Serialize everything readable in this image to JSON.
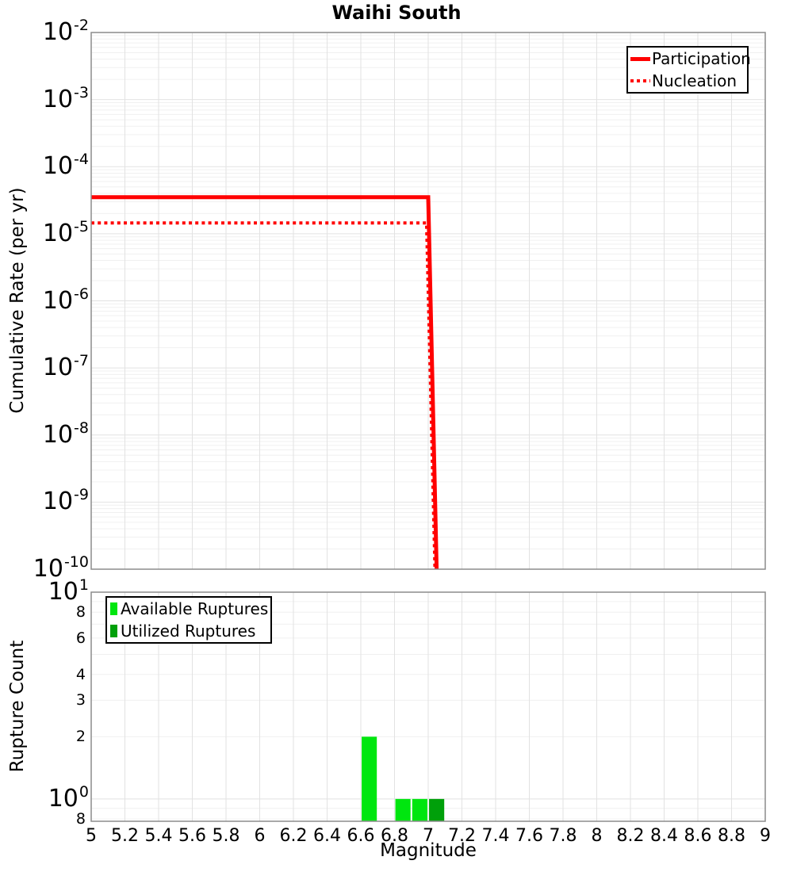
{
  "colors": {
    "line_red": "#FF0000",
    "available_green": "#00E60F",
    "utilized_green": "#00A00A",
    "grid_major": "#E2E2E2",
    "grid_minor": "#F0F0F0",
    "frame": "#8C8C8C",
    "background": "#FFFFFF"
  },
  "chart_data": [
    {
      "type": "line",
      "title": "Waihi South",
      "xlabel": "Magnitude",
      "ylabel": "Cumulative Rate (per yr)",
      "xscale": "linear",
      "yscale": "log",
      "xlim": [
        5,
        9
      ],
      "ylim": [
        1e-10,
        0.01
      ],
      "grid": true,
      "legend_position": "top-right",
      "x_tick_labels": [
        "5",
        "5.2",
        "5.4",
        "5.6",
        "5.8",
        "6",
        "6.2",
        "6.4",
        "6.6",
        "6.8",
        "7",
        "7.2",
        "7.4",
        "7.6",
        "7.8",
        "8",
        "8.2",
        "8.4",
        "8.6",
        "8.8",
        "9"
      ],
      "y_tick_exponents": [
        -2,
        -3,
        -4,
        -5,
        -6,
        -7,
        -8,
        -9,
        -10
      ],
      "series": [
        {
          "name": "Participation",
          "color": "#FF0000",
          "line_style": "solid",
          "line_width": 5,
          "points": [
            [
              5.0,
              3.5e-05
            ],
            [
              7.0,
              3.5e-05
            ],
            [
              7.05,
              1e-10
            ]
          ]
        },
        {
          "name": "Nucleation",
          "color": "#FF0000",
          "line_style": "dotted",
          "line_width": 4,
          "points": [
            [
              5.0,
              1.45e-05
            ],
            [
              6.99,
              1.45e-05
            ],
            [
              7.04,
              1e-10
            ]
          ]
        }
      ]
    },
    {
      "type": "bar",
      "xlabel": "Magnitude",
      "ylabel": "Rupture Count",
      "yscale": "log",
      "xlim": [
        5,
        9
      ],
      "ylim": [
        0.78,
        10
      ],
      "grid": true,
      "legend_position": "top-left",
      "bar_bin_width": 0.1,
      "bar_draw_width": 0.09,
      "y_major_ticks": [
        {
          "exponent": 1
        },
        {
          "exponent": 0
        }
      ],
      "y_minor_ticks": [
        {
          "value": 8,
          "label": "8"
        },
        {
          "value": 6,
          "label": "6"
        },
        {
          "value": 4,
          "label": "4"
        },
        {
          "value": 3,
          "label": "3"
        },
        {
          "value": 2,
          "label": "2"
        },
        {
          "value": 0.8,
          "label": "8"
        }
      ],
      "series": [
        {
          "name": "Available Ruptures",
          "color": "#00E60F",
          "bars": [
            {
              "magnitude": 6.65,
              "count": 2
            },
            {
              "magnitude": 6.85,
              "count": 1
            },
            {
              "magnitude": 6.95,
              "count": 1
            }
          ]
        },
        {
          "name": "Utilized Ruptures",
          "color": "#00A00A",
          "bars": [
            {
              "magnitude": 7.05,
              "count": 1
            }
          ]
        }
      ]
    }
  ]
}
